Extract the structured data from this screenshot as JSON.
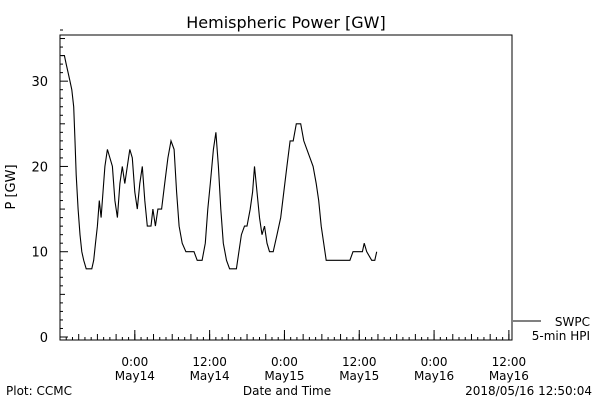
{
  "chart_data": {
    "type": "line",
    "title": "Hemispheric Power [GW]",
    "ylabel": "P [GW]",
    "xlabel": "Date and Time",
    "ylim": [
      0,
      36
    ],
    "yticks": [
      0,
      10,
      20,
      30
    ],
    "grid": false,
    "x_units": "hours after 2018-05-13 12:00",
    "xlim": [
      0,
      72.5
    ],
    "xticks": [
      {
        "x": 12,
        "time": "0:00",
        "date": "May14"
      },
      {
        "x": 24,
        "time": "12:00",
        "date": "May14"
      },
      {
        "x": 36,
        "time": "0:00",
        "date": "May15"
      },
      {
        "x": 48,
        "time": "12:00",
        "date": "May15"
      },
      {
        "x": 60,
        "time": "0:00",
        "date": "May16"
      },
      {
        "x": 72,
        "time": "12:00",
        "date": "May16"
      }
    ],
    "legend": [
      {
        "label": "SWPC",
        "style": "line"
      },
      {
        "label": "5-min HPI",
        "style": "none"
      }
    ],
    "legend_position": "bottom-right outside",
    "series": [
      {
        "name": "SWPC",
        "color": "#000000",
        "points": [
          [
            0.2,
            33
          ],
          [
            0.7,
            33
          ],
          [
            1.0,
            32
          ],
          [
            1.3,
            31
          ],
          [
            1.6,
            30
          ],
          [
            1.9,
            29
          ],
          [
            2.2,
            27
          ],
          [
            2.4,
            23
          ],
          [
            2.6,
            19
          ],
          [
            2.9,
            15
          ],
          [
            3.2,
            12
          ],
          [
            3.5,
            10
          ],
          [
            3.8,
            9
          ],
          [
            4.2,
            8
          ],
          [
            5.1,
            8
          ],
          [
            5.4,
            9
          ],
          [
            5.7,
            11
          ],
          [
            6.0,
            13
          ],
          [
            6.3,
            16
          ],
          [
            6.6,
            14
          ],
          [
            6.9,
            17
          ],
          [
            7.2,
            20
          ],
          [
            7.6,
            22
          ],
          [
            8.0,
            21
          ],
          [
            8.4,
            20
          ],
          [
            8.8,
            16
          ],
          [
            9.2,
            14
          ],
          [
            9.6,
            18
          ],
          [
            10.0,
            20
          ],
          [
            10.4,
            18
          ],
          [
            10.8,
            20
          ],
          [
            11.2,
            22
          ],
          [
            11.6,
            21
          ],
          [
            12.0,
            17
          ],
          [
            12.4,
            15
          ],
          [
            12.8,
            18
          ],
          [
            13.2,
            20
          ],
          [
            13.6,
            16
          ],
          [
            14.0,
            13
          ],
          [
            14.6,
            13
          ],
          [
            14.9,
            15
          ],
          [
            15.3,
            13
          ],
          [
            15.7,
            15
          ],
          [
            16.3,
            15
          ],
          [
            16.8,
            18
          ],
          [
            17.3,
            21
          ],
          [
            17.8,
            23
          ],
          [
            18.3,
            22
          ],
          [
            18.7,
            17
          ],
          [
            19.1,
            13
          ],
          [
            19.6,
            11
          ],
          [
            20.2,
            10
          ],
          [
            21.5,
            10
          ],
          [
            22.0,
            9
          ],
          [
            22.8,
            9
          ],
          [
            23.3,
            11
          ],
          [
            23.7,
            15
          ],
          [
            24.1,
            18
          ],
          [
            24.6,
            22
          ],
          [
            25.0,
            24
          ],
          [
            25.4,
            20
          ],
          [
            25.8,
            15
          ],
          [
            26.2,
            11
          ],
          [
            26.7,
            9
          ],
          [
            27.2,
            8
          ],
          [
            28.3,
            8
          ],
          [
            28.7,
            10
          ],
          [
            29.1,
            12
          ],
          [
            29.6,
            13
          ],
          [
            30.0,
            13
          ],
          [
            30.5,
            15
          ],
          [
            30.9,
            17
          ],
          [
            31.2,
            20
          ],
          [
            31.6,
            17
          ],
          [
            32.0,
            14
          ],
          [
            32.4,
            12
          ],
          [
            32.8,
            13
          ],
          [
            33.2,
            11
          ],
          [
            33.6,
            10
          ],
          [
            34.2,
            10
          ],
          [
            34.8,
            12
          ],
          [
            35.4,
            14
          ],
          [
            35.9,
            17
          ],
          [
            36.4,
            20
          ],
          [
            36.9,
            23
          ],
          [
            37.4,
            23
          ],
          [
            37.9,
            25
          ],
          [
            38.6,
            25
          ],
          [
            39.1,
            23
          ],
          [
            39.6,
            22
          ],
          [
            40.1,
            21
          ],
          [
            40.6,
            20
          ],
          [
            41.1,
            18
          ],
          [
            41.5,
            16
          ],
          [
            41.9,
            13
          ],
          [
            42.3,
            11
          ],
          [
            42.7,
            9
          ],
          [
            43.5,
            9
          ],
          [
            46.5,
            9
          ],
          [
            47.0,
            10
          ],
          [
            48.5,
            10
          ],
          [
            48.8,
            11
          ],
          [
            49.2,
            10
          ],
          [
            50.0,
            9
          ],
          [
            50.5,
            9
          ],
          [
            50.8,
            10
          ]
        ]
      }
    ]
  },
  "footer": {
    "left": "Plot: CCMC",
    "right": "2018/05/16 12:50:04"
  }
}
